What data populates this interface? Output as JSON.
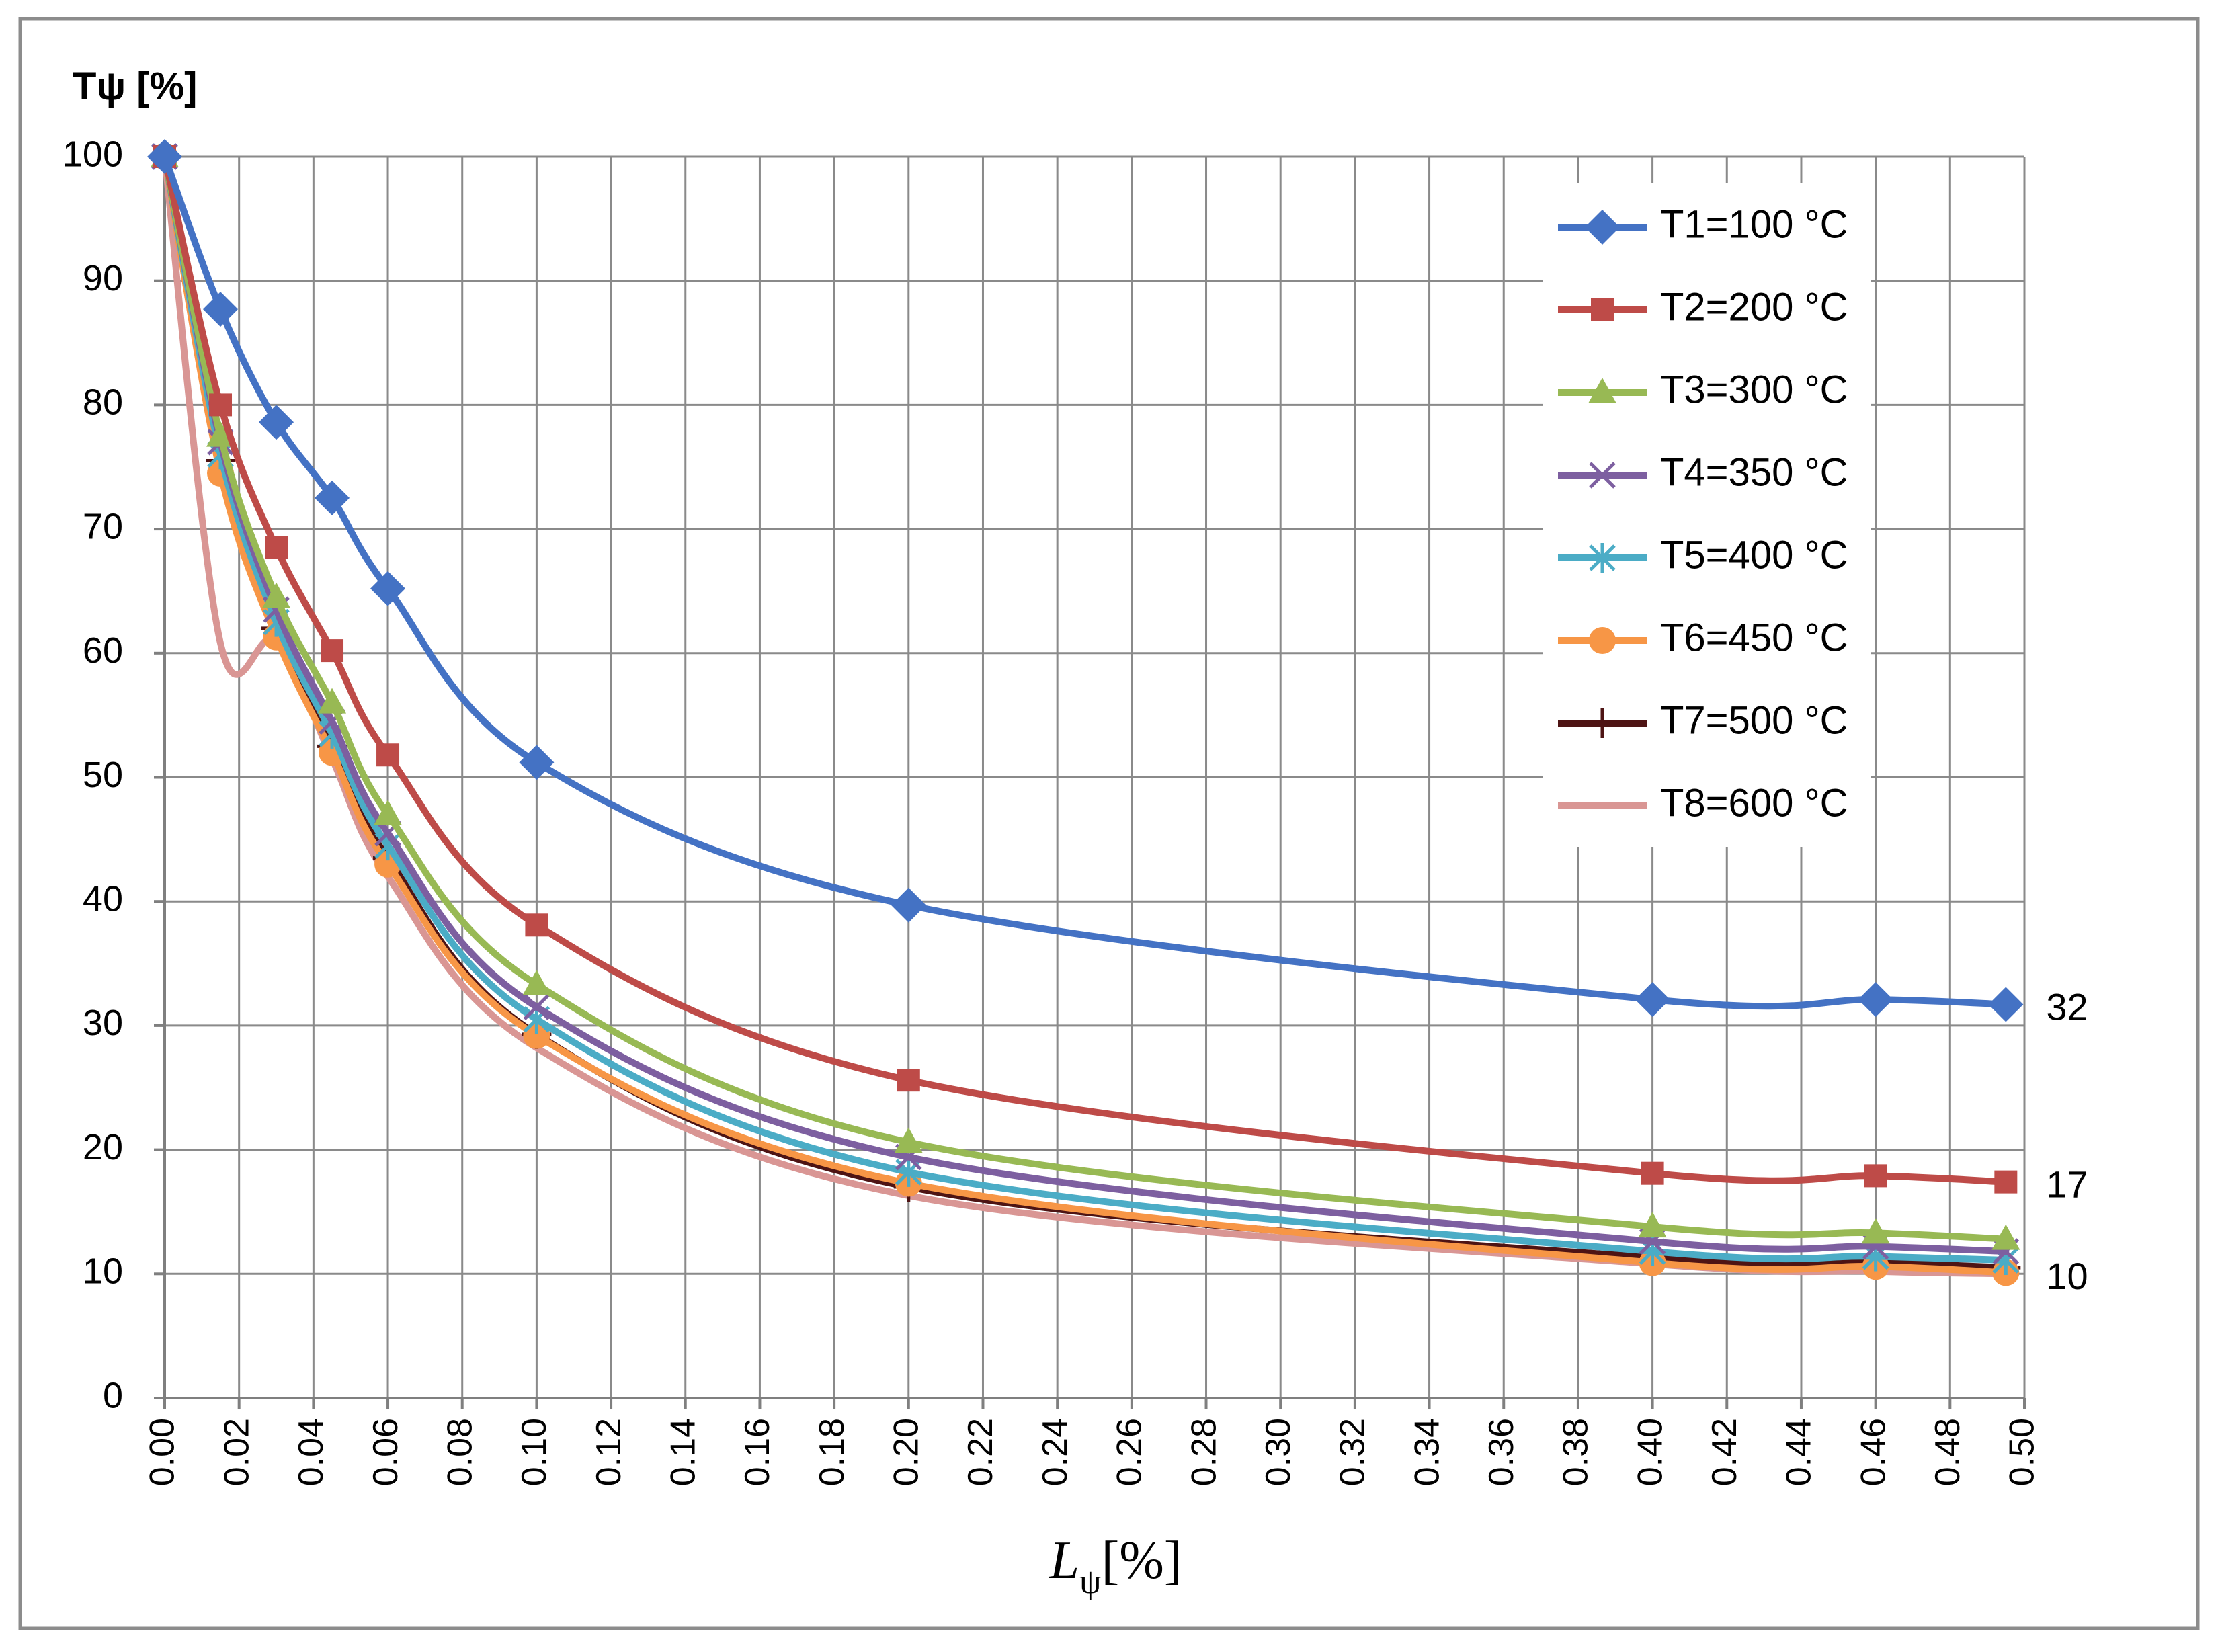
{
  "chart_data": {
    "type": "line",
    "title": "",
    "ylabel": "Tψ [%]",
    "xlabel_main": "L",
    "xlabel_sub": "ψ",
    "xlabel_unit": "[%]",
    "xlim": [
      0,
      0.5
    ],
    "ylim": [
      0,
      100
    ],
    "xticks": [
      0.0,
      0.02,
      0.04,
      0.06,
      0.08,
      0.1,
      0.12,
      0.14,
      0.16,
      0.18,
      0.2,
      0.22,
      0.24,
      0.26,
      0.28,
      0.3,
      0.32,
      0.34,
      0.36,
      0.38,
      0.4,
      0.42,
      0.44,
      0.46,
      0.48,
      0.5
    ],
    "xtick_labels": [
      "0.00",
      "0.02",
      "0.04",
      "0.06",
      "0.08",
      "0.10",
      "0.12",
      "0.14",
      "0.16",
      "0.18",
      "0.20",
      "0.22",
      "0.24",
      "0.26",
      "0.28",
      "0.30",
      "0.32",
      "0.34",
      "0.36",
      "0.38",
      "0.40",
      "0.42",
      "0.44",
      "0.46",
      "0.48",
      "0.50"
    ],
    "yticks": [
      0,
      10,
      20,
      30,
      40,
      50,
      60,
      70,
      80,
      90,
      100
    ],
    "ytick_labels": [
      "0",
      "10",
      "20",
      "30",
      "40",
      "50",
      "60",
      "70",
      "80",
      "90",
      "100"
    ],
    "grid": true,
    "legend_position": "top-right",
    "x": [
      0,
      0.015,
      0.03,
      0.045,
      0.06,
      0.1,
      0.2,
      0.4,
      0.46,
      0.495
    ],
    "series": [
      {
        "name": "T1=100 °C",
        "color": "#4472C4",
        "marker": "diamond",
        "values": [
          100,
          87.7,
          78.6,
          72.5,
          65.2,
          51.2,
          39.7,
          32.1,
          32.1,
          31.7
        ]
      },
      {
        "name": "T2=200 °C",
        "color": "#BE4B48",
        "marker": "square",
        "values": [
          100,
          80.0,
          68.5,
          60.2,
          51.8,
          38.1,
          25.6,
          18.1,
          17.9,
          17.4
        ]
      },
      {
        "name": "T3=300 °C",
        "color": "#98B954",
        "marker": "triangle",
        "values": [
          100,
          77.5,
          64.5,
          56.0,
          47.0,
          33.3,
          20.6,
          13.8,
          13.3,
          12.8
        ]
      },
      {
        "name": "T4=350 °C",
        "color": "#7D5FA0",
        "marker": "x",
        "values": [
          100,
          77.0,
          63.5,
          54.5,
          45.5,
          31.5,
          19.4,
          12.6,
          12.2,
          11.8
        ]
      },
      {
        "name": "T5=400 °C",
        "color": "#4BACC6",
        "marker": "asterisk",
        "values": [
          100,
          76.0,
          62.5,
          53.5,
          44.5,
          30.5,
          18.2,
          11.8,
          11.4,
          11.1
        ]
      },
      {
        "name": "T6=450 °C",
        "color": "#F79646",
        "marker": "circle",
        "values": [
          100,
          74.5,
          61.3,
          52.0,
          43.0,
          29.2,
          17.3,
          10.9,
          10.6,
          10.1
        ]
      },
      {
        "name": "T7=500 °C",
        "color": "#4E1414",
        "marker": "plus",
        "values": [
          100,
          75.5,
          62.0,
          52.5,
          43.5,
          29.3,
          17.0,
          11.3,
          10.9,
          10.5
        ]
      },
      {
        "name": "T8=600 °C",
        "color": "#D99694",
        "marker": "none",
        "values": [
          100,
          60.8,
          61.0,
          51.5,
          42.0,
          28.2,
          16.3,
          10.8,
          10.2,
          10.0
        ]
      }
    ],
    "annotations": [
      {
        "text": "32",
        "x": 0.495,
        "y": 31.7
      },
      {
        "text": "17",
        "x": 0.495,
        "y": 17.4
      },
      {
        "text": "10",
        "x": 0.495,
        "y": 10.0
      }
    ]
  }
}
